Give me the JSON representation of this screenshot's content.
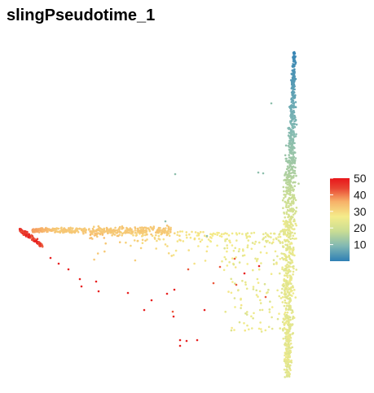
{
  "chart_data": {
    "type": "scatter",
    "title": "slingPseudotime_1",
    "xlabel": "",
    "ylabel": "",
    "axes_visible": false,
    "grid": false,
    "legend_placement": "right",
    "color_scale": {
      "name": "",
      "min": 0,
      "max": 50,
      "ticks": [
        10,
        20,
        30,
        40,
        50
      ],
      "palette": [
        "#2f7fb5",
        "#7fb7b3",
        "#c9dd94",
        "#f5ec8a",
        "#f7b068",
        "#e84432",
        "#e8161a"
      ]
    },
    "point_groups": [
      {
        "description_color_value": 2,
        "x": 362,
        "y_range": [
          64,
          110
        ],
        "count": 40
      },
      {
        "description_color_value": 8,
        "x": 358,
        "y_range": [
          110,
          200
        ],
        "count": 130
      },
      {
        "description_color_value": 14,
        "x": 355,
        "y_range": [
          200,
          260
        ],
        "count": 160
      },
      {
        "description_color_value": 20,
        "x": 352,
        "y_range": [
          260,
          460
        ],
        "count": 420
      },
      {
        "description_color_value": 22,
        "x": 300,
        "y_range": [
          255,
          420
        ],
        "count": 110
      },
      {
        "description_color_value": 27,
        "x": 200,
        "y_range": [
          270,
          330
        ],
        "count": 90
      },
      {
        "description_color_value": 31,
        "x": 80,
        "y_range": [
          272,
          300
        ],
        "count": 160
      },
      {
        "description_color_value": 44,
        "x": 33,
        "y_range": [
          278,
          312
        ],
        "count": 90
      },
      {
        "description_color_value": 50,
        "x": 120,
        "y_range": [
          300,
          425
        ],
        "count": 30
      }
    ]
  }
}
